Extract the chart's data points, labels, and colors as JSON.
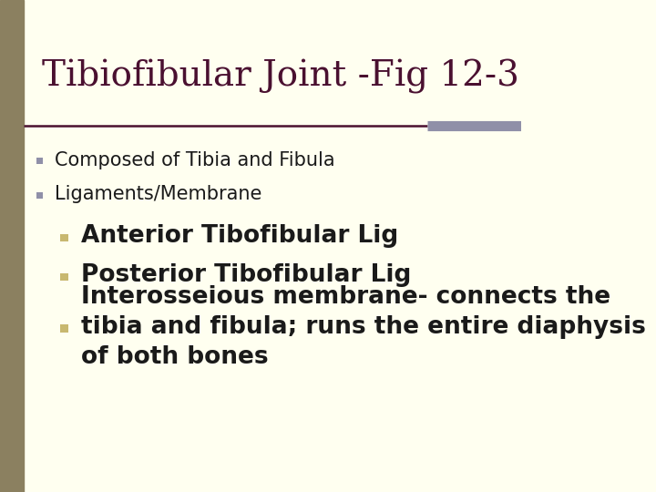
{
  "title": "Tibiofibular Joint -Fig 12-3",
  "background_color": "#f5f5dc",
  "slide_bg": "#fffff0",
  "title_color": "#4a1030",
  "title_fontsize": 28,
  "body_fontsize": 15,
  "sub_fontsize": 19,
  "left_bar_color": "#8b8060",
  "left_bar_width": 0.045,
  "top_bar_color": "#4a1030",
  "top_bar_right_color": "#9090a8",
  "bullet_color_l1": "#9090a8",
  "bullet_color_l2": "#c8b870",
  "separator_color": "#4a1030",
  "items": [
    {
      "level": 1,
      "text": "Composed of Tibia and Fibula"
    },
    {
      "level": 1,
      "text": "Ligaments/Membrane"
    },
    {
      "level": 2,
      "text": "Anterior Tibofibular Lig"
    },
    {
      "level": 2,
      "text": "Posterior Tibofibular Lig"
    },
    {
      "level": 2,
      "text": "Interosseious membrane- connects the\ntibia and fibula; runs the entire diaphysis\nof both bones"
    }
  ]
}
